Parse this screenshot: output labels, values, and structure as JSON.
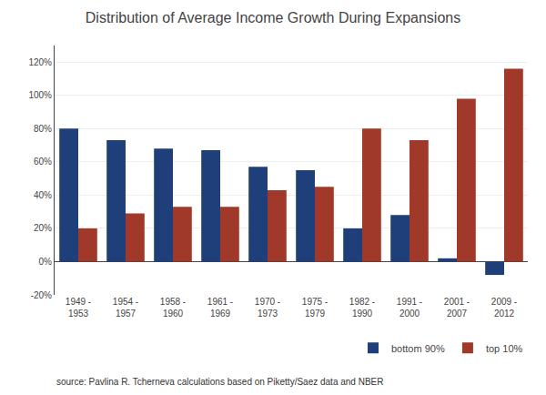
{
  "chart_data": {
    "type": "bar",
    "title": "Distribution of Average Income Growth During Expansions",
    "categories": [
      "1949 -\n1953",
      "1954 -\n1957",
      "1958 -\n1960",
      "1961 -\n1969",
      "1970 -\n1973",
      "1975 -\n1979",
      "1982 -\n1990",
      "1991 -\n2000",
      "2001 -\n2007",
      "2009 -\n2012"
    ],
    "series": [
      {
        "name": "bottom 90%",
        "color": "#1F3F7A",
        "values": [
          80,
          73,
          68,
          67,
          57,
          55,
          20,
          28,
          2,
          -8
        ]
      },
      {
        "name": "top 10%",
        "color": "#A0392A",
        "values": [
          20,
          29,
          33,
          33,
          43,
          45,
          80,
          73,
          98,
          116
        ]
      }
    ],
    "ylim": [
      -20,
      130
    ],
    "yticks": [
      {
        "value": -20,
        "label": "-20%"
      },
      {
        "value": 0,
        "label": "0%"
      },
      {
        "value": 20,
        "label": "20%"
      },
      {
        "value": 40,
        "label": "40%"
      },
      {
        "value": 60,
        "label": "60%"
      },
      {
        "value": 80,
        "label": "80%"
      },
      {
        "value": 100,
        "label": "100%"
      },
      {
        "value": 120,
        "label": "120%"
      }
    ],
    "grid": true,
    "legend": "lower right",
    "annotations": [
      "source: Pavlina R. Tcherneva calculations based on Piketty/Saez data and NBER"
    ]
  }
}
